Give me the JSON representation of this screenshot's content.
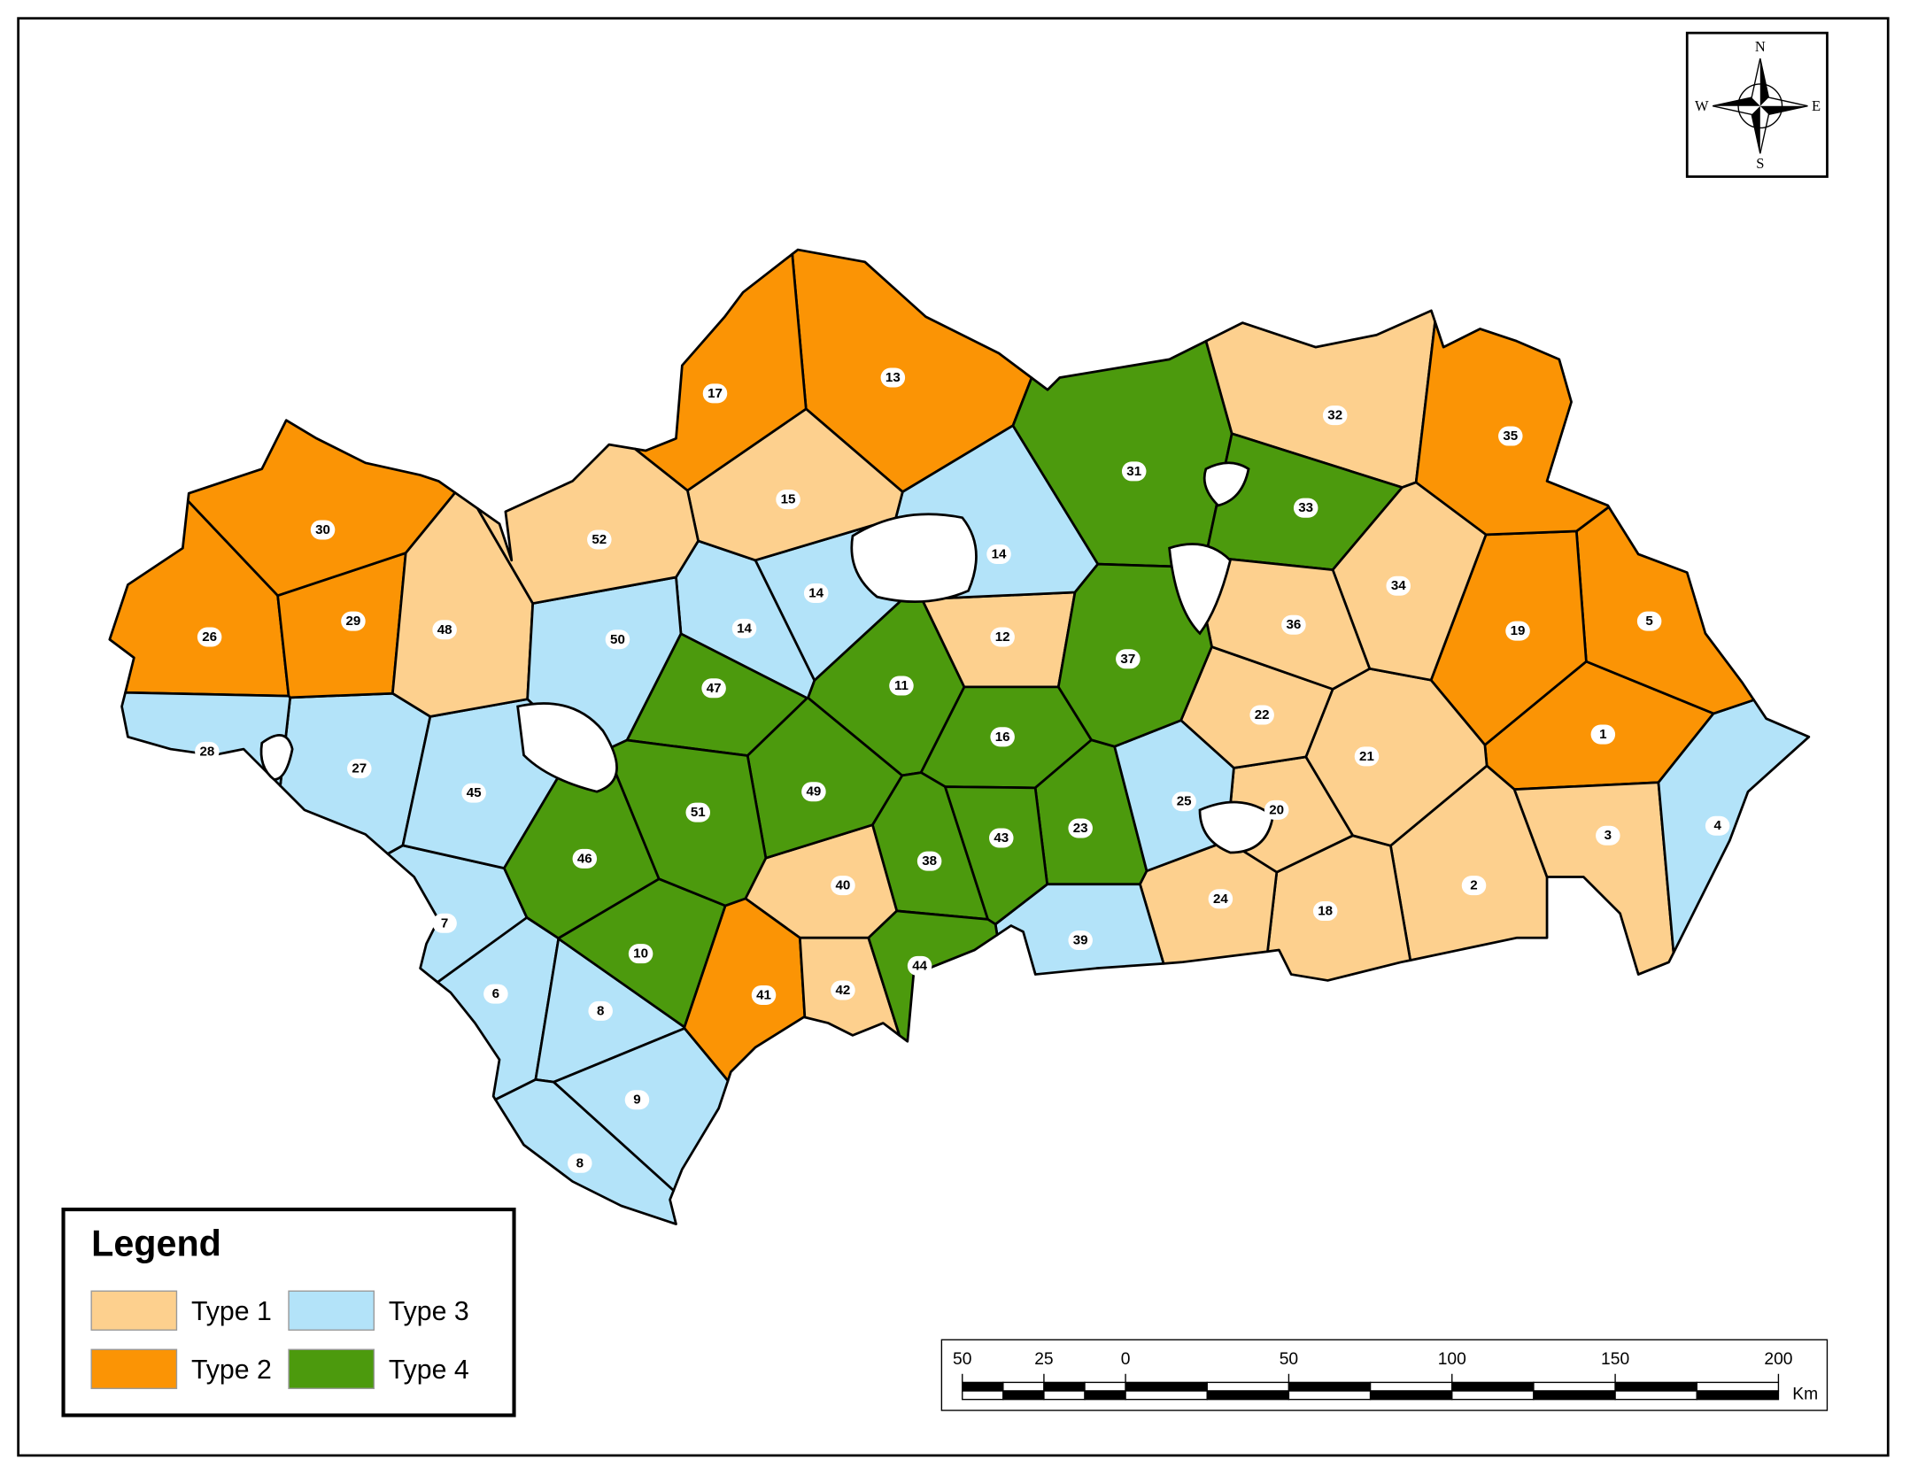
{
  "legend": {
    "title": "Legend",
    "items": [
      {
        "label": "Type 1",
        "color": "#fdd08e"
      },
      {
        "label": "Type 2",
        "color": "#fb9405"
      },
      {
        "label": "Type 3",
        "color": "#b3e3f9"
      },
      {
        "label": "Type 4",
        "color": "#4c9a0d"
      }
    ]
  },
  "regions": [
    {
      "label": "1",
      "type": "Type 2"
    },
    {
      "label": "2",
      "type": "Type 1"
    },
    {
      "label": "3",
      "type": "Type 1"
    },
    {
      "label": "4",
      "type": "Type 3"
    },
    {
      "label": "5",
      "type": "Type 2"
    },
    {
      "label": "6",
      "type": "Type 3"
    },
    {
      "label": "7",
      "type": "Type 3"
    },
    {
      "label": "8",
      "type": "Type 3"
    },
    {
      "label": "8",
      "type": "Type 3"
    },
    {
      "label": "9",
      "type": "Type 3"
    },
    {
      "label": "10",
      "type": "Type 4"
    },
    {
      "label": "11",
      "type": "Type 4"
    },
    {
      "label": "12",
      "type": "Type 1"
    },
    {
      "label": "13",
      "type": "Type 2"
    },
    {
      "label": "14",
      "type": "Type 3"
    },
    {
      "label": "14",
      "type": "Type 3"
    },
    {
      "label": "14",
      "type": "Type 3"
    },
    {
      "label": "15",
      "type": "Type 1"
    },
    {
      "label": "16",
      "type": "Type 4"
    },
    {
      "label": "17",
      "type": "Type 2"
    },
    {
      "label": "18",
      "type": "Type 1"
    },
    {
      "label": "19",
      "type": "Type 2"
    },
    {
      "label": "20",
      "type": "Type 1"
    },
    {
      "label": "21",
      "type": "Type 1"
    },
    {
      "label": "22",
      "type": "Type 1"
    },
    {
      "label": "23",
      "type": "Type 4"
    },
    {
      "label": "24",
      "type": "Type 1"
    },
    {
      "label": "25",
      "type": "Type 3"
    },
    {
      "label": "26",
      "type": "Type 2"
    },
    {
      "label": "27",
      "type": "Type 3"
    },
    {
      "label": "28",
      "type": "Type 3"
    },
    {
      "label": "29",
      "type": "Type 2"
    },
    {
      "label": "30",
      "type": "Type 2"
    },
    {
      "label": "31",
      "type": "Type 4"
    },
    {
      "label": "32",
      "type": "Type 1"
    },
    {
      "label": "33",
      "type": "Type 4"
    },
    {
      "label": "34",
      "type": "Type 1"
    },
    {
      "label": "35",
      "type": "Type 2"
    },
    {
      "label": "36",
      "type": "Type 1"
    },
    {
      "label": "37",
      "type": "Type 4"
    },
    {
      "label": "38",
      "type": "Type 4"
    },
    {
      "label": "39",
      "type": "Type 3"
    },
    {
      "label": "40",
      "type": "Type 1"
    },
    {
      "label": "41",
      "type": "Type 2"
    },
    {
      "label": "42",
      "type": "Type 1"
    },
    {
      "label": "43",
      "type": "Type 4"
    },
    {
      "label": "44",
      "type": "Type 4"
    },
    {
      "label": "45",
      "type": "Type 3"
    },
    {
      "label": "46",
      "type": "Type 4"
    },
    {
      "label": "47",
      "type": "Type 4"
    },
    {
      "label": "48",
      "type": "Type 1"
    },
    {
      "label": "49",
      "type": "Type 4"
    },
    {
      "label": "50",
      "type": "Type 3"
    },
    {
      "label": "51",
      "type": "Type 4"
    },
    {
      "label": "52",
      "type": "Type 1"
    }
  ],
  "scale_bar": {
    "ticks": [
      {
        "value": -50,
        "label": "50"
      },
      {
        "value": -25,
        "label": "25"
      },
      0,
      50,
      100,
      150,
      200
    ],
    "unit": "Km"
  },
  "compass": {
    "north": "N",
    "south": "S",
    "east": "E",
    "west": "W"
  }
}
